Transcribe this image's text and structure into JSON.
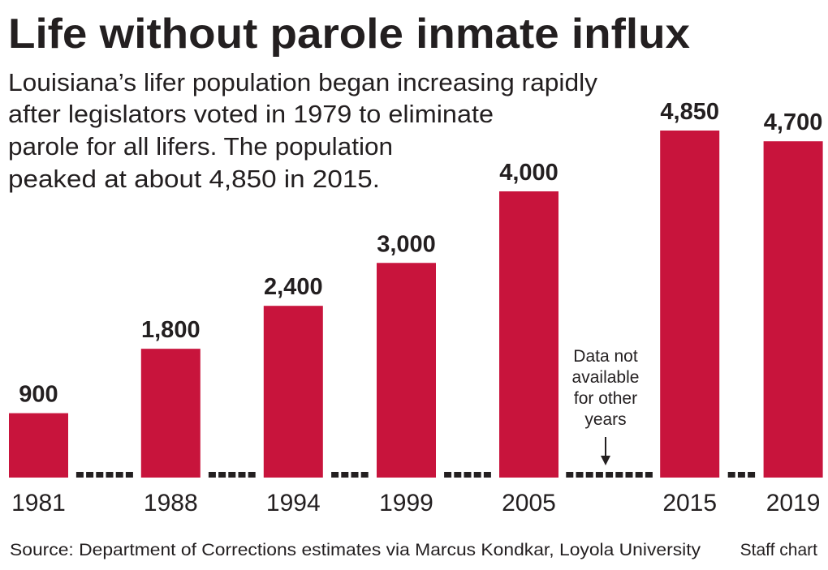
{
  "chart_data": {
    "type": "bar",
    "title": "Life without parole inmate influx",
    "subtitle": [
      "Louisiana’s lifer population began increasing rapidly",
      "after legislators voted in 1979 to eliminate",
      "parole for all lifers. The population",
      "peaked at about 4,850 in 2015."
    ],
    "categories": [
      "1981",
      "1988",
      "1994",
      "1999",
      "2005",
      "2015",
      "2019"
    ],
    "values": [
      900,
      1800,
      2400,
      3000,
      4000,
      4850,
      4700
    ],
    "value_labels": [
      "900",
      "1,800",
      "2,400",
      "3,000",
      "4,000",
      "4,850",
      "4,700"
    ],
    "missing_year_markers": "dashed",
    "annotation": {
      "lines": [
        "Data not",
        "available",
        "for other",
        "years"
      ]
    },
    "source": "Source: Department of Corrections estimates via Marcus Kondkar, Loyola University",
    "credit": "Staff chart",
    "xlabel": "",
    "ylabel": "",
    "ylim": [
      0,
      4850
    ],
    "grid": false,
    "colors": {
      "bar": "#c8143c",
      "text": "#231f20",
      "dash": "#231f20"
    }
  }
}
